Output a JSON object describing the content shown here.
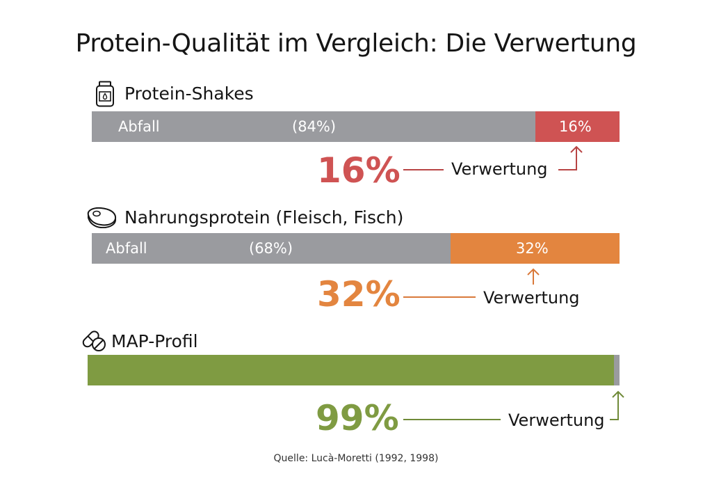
{
  "title": "Protein-Qualität im Vergleich: Die Verwertung",
  "source": "Quelle: Lucà-Moretti (1992, 1998)",
  "colors": {
    "waste": "#9a9b9f",
    "shakes": "#cf5353",
    "food": "#e3853f",
    "map": "#7f9b42"
  },
  "chart_data": {
    "type": "bar",
    "orientation": "horizontal-stacked",
    "title": "Protein-Qualität im Vergleich: Die Verwertung",
    "xlim": [
      0,
      100
    ],
    "unit": "%",
    "categories": [
      "Protein-Shakes",
      "Nahrungsprotein (Fleisch, Fisch)",
      "MAP-Profil"
    ],
    "series": [
      {
        "name": "Abfall",
        "values": [
          84,
          68,
          1
        ]
      },
      {
        "name": "Verwertung",
        "values": [
          16,
          32,
          99
        ]
      }
    ],
    "rows": [
      {
        "name": "Protein-Shakes",
        "icon": "protein-jar-icon",
        "waste_label": "Abfall",
        "waste_pct_label": "(84%)",
        "waste": 84,
        "util": 16,
        "util_label": "16%",
        "big_label": "16%",
        "util_text": "Verwertung",
        "color": "#cf5353"
      },
      {
        "name": "Nahrungsprotein (Fleisch, Fisch)",
        "icon": "steak-icon",
        "waste_label": "Abfall",
        "waste_pct_label": "(68%)",
        "waste": 68,
        "util": 32,
        "util_label": "32%",
        "big_label": "32%",
        "util_text": "Verwertung",
        "color": "#e3853f"
      },
      {
        "name": "MAP-Profil",
        "icon": "pills-icon",
        "waste_label": "",
        "waste_pct_label": "",
        "waste": 1,
        "util": 99,
        "util_label": "",
        "big_label": "99%",
        "util_text": "Verwertung",
        "color": "#7f9b42"
      }
    ]
  }
}
